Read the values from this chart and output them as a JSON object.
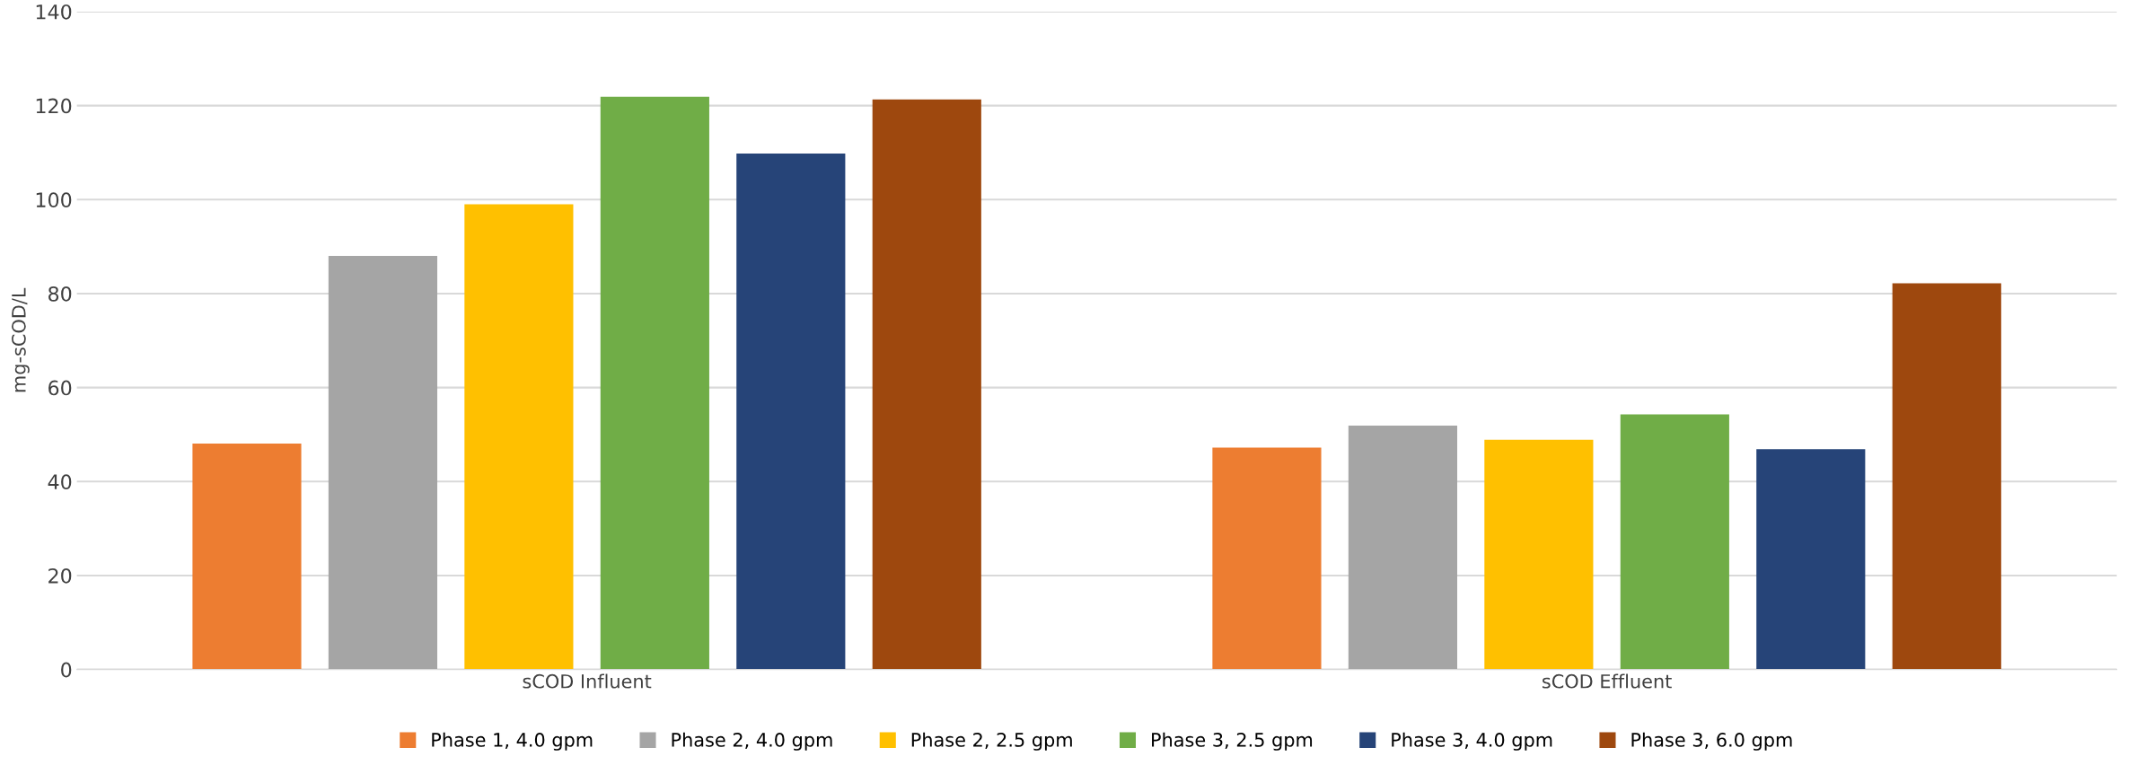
{
  "chart_data": {
    "type": "bar",
    "ylabel": "mg-sCOD/L",
    "categories": [
      "sCOD Influent",
      "sCOD Effluent"
    ],
    "series": [
      {
        "name": "Phase 1, 4.0 gpm",
        "color": "#ed7d31",
        "values": [
          48.1,
          47.2
        ]
      },
      {
        "name": "Phase 2, 4.0 gpm",
        "color": "#a5a5a5",
        "values": [
          88,
          51.9
        ]
      },
      {
        "name": "Phase 2, 2.5 gpm",
        "color": "#ffc000",
        "values": [
          99,
          48.9
        ]
      },
      {
        "name": "Phase 3, 2.5 gpm",
        "color": "#70ad47",
        "values": [
          121.9,
          54.3
        ]
      },
      {
        "name": "Phase 3, 4.0 gpm",
        "color": "#264478",
        "values": [
          109.8,
          46.9
        ]
      },
      {
        "name": "Phase 3, 6.0 gpm",
        "color": "#9e480e",
        "values": [
          121.3,
          82.2
        ]
      }
    ],
    "ylim": [
      0,
      140
    ],
    "yticks": [
      0,
      20,
      40,
      60,
      80,
      100,
      120,
      140
    ],
    "grid": "y",
    "legend": "bottom"
  }
}
